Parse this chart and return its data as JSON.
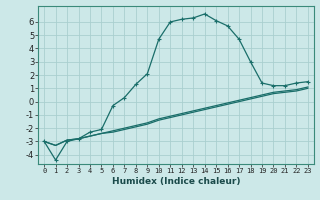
{
  "xlabel": "Humidex (Indice chaleur)",
  "ylabel": "",
  "xlim": [
    -0.5,
    23.5
  ],
  "ylim": [
    -4.7,
    7.2
  ],
  "background_color": "#cce8e8",
  "grid_color": "#aacfcf",
  "line_color": "#1a6e6a",
  "x_ticks": [
    0,
    1,
    2,
    3,
    4,
    5,
    6,
    7,
    8,
    9,
    10,
    11,
    12,
    13,
    14,
    15,
    16,
    17,
    18,
    19,
    20,
    21,
    22,
    23
  ],
  "y_ticks": [
    -4,
    -3,
    -2,
    -1,
    0,
    1,
    2,
    3,
    4,
    5,
    6
  ],
  "curve1_x": [
    0,
    1,
    2,
    3,
    4,
    5,
    6,
    7,
    8,
    9,
    10,
    11,
    12,
    13,
    14,
    15,
    16,
    17,
    18,
    19,
    20,
    21,
    22,
    23
  ],
  "curve1_y": [
    -3.0,
    -4.4,
    -3.0,
    -2.8,
    -2.3,
    -2.1,
    -0.3,
    0.3,
    1.3,
    2.1,
    4.7,
    6.0,
    6.2,
    6.3,
    6.6,
    6.1,
    5.7,
    4.7,
    3.0,
    1.4,
    1.2,
    1.2,
    1.4,
    1.5
  ],
  "curve2_x": [
    0,
    1,
    2,
    3,
    4,
    5,
    6,
    7,
    8,
    9,
    10,
    11,
    12,
    13,
    14,
    15,
    16,
    17,
    18,
    19,
    20,
    21,
    22,
    23
  ],
  "curve2_y": [
    -3.0,
    -3.3,
    -2.9,
    -2.8,
    -2.6,
    -2.4,
    -2.2,
    -2.0,
    -1.8,
    -1.6,
    -1.3,
    -1.1,
    -0.9,
    -0.7,
    -0.5,
    -0.3,
    -0.1,
    0.1,
    0.3,
    0.5,
    0.7,
    0.8,
    0.9,
    1.1
  ],
  "curve3_x": [
    0,
    1,
    2,
    3,
    4,
    5,
    6,
    7,
    8,
    9,
    10,
    11,
    12,
    13,
    14,
    15,
    16,
    17,
    18,
    19,
    20,
    21,
    22,
    23
  ],
  "curve3_y": [
    -3.0,
    -3.3,
    -2.9,
    -2.8,
    -2.6,
    -2.4,
    -2.3,
    -2.1,
    -1.9,
    -1.7,
    -1.4,
    -1.2,
    -1.0,
    -0.8,
    -0.6,
    -0.4,
    -0.2,
    0.0,
    0.2,
    0.4,
    0.6,
    0.7,
    0.8,
    1.0
  ]
}
